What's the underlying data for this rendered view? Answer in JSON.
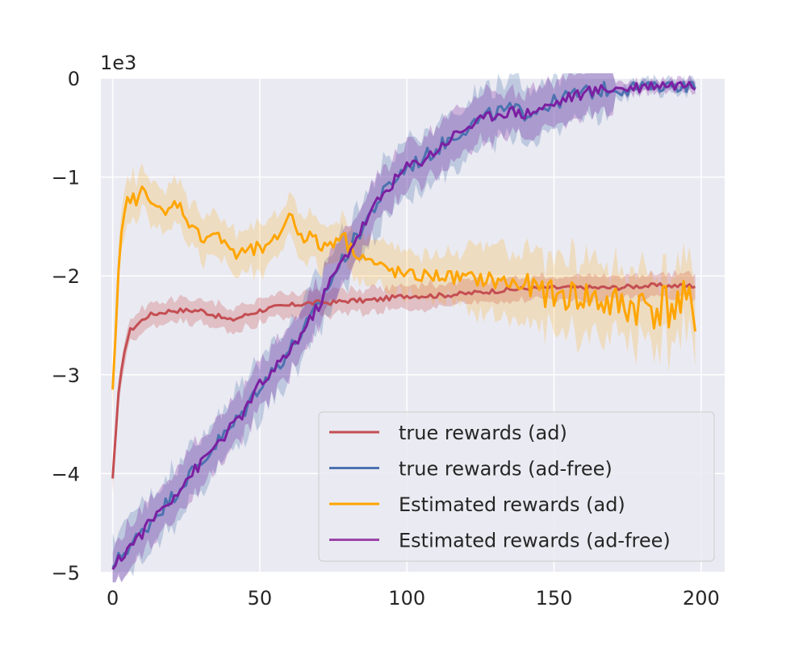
{
  "chart_data": {
    "type": "line",
    "title": "",
    "xlabel": "",
    "ylabel": "",
    "y_scale_label": "1e3",
    "xlim": [
      -4,
      208
    ],
    "ylim": [
      -5,
      0
    ],
    "xticks": [
      0,
      50,
      100,
      150,
      200
    ],
    "xtick_labels": [
      "0",
      "50",
      "100",
      "150",
      "200"
    ],
    "yticks": [
      0,
      -1,
      -2,
      -3,
      -4,
      -5
    ],
    "ytick_labels": [
      "0",
      "−1",
      "−2",
      "−3",
      "−4",
      "−5"
    ],
    "grid": true,
    "background": "#eaeaf2",
    "legend": {
      "position": "lower-right"
    },
    "series": [
      {
        "name": "true rewards (ad)",
        "color": "#c44e52",
        "band_spread": 0.12,
        "x": [
          0,
          2,
          4,
          6,
          8,
          10,
          12,
          15,
          20,
          25,
          30,
          35,
          40,
          45,
          50,
          55,
          60,
          65,
          70,
          75,
          80,
          85,
          90,
          95,
          100,
          110,
          120,
          130,
          140,
          150,
          160,
          170,
          180,
          190,
          198
        ],
        "y": [
          -4.05,
          -3.2,
          -2.75,
          -2.55,
          -2.5,
          -2.45,
          -2.4,
          -2.38,
          -2.35,
          -2.35,
          -2.35,
          -2.4,
          -2.45,
          -2.4,
          -2.35,
          -2.32,
          -2.3,
          -2.28,
          -2.27,
          -2.27,
          -2.25,
          -2.25,
          -2.24,
          -2.22,
          -2.2,
          -2.2,
          -2.18,
          -2.15,
          -2.13,
          -2.12,
          -2.12,
          -2.12,
          -2.1,
          -2.1,
          -2.1
        ]
      },
      {
        "name": "true rewards (ad-free)",
        "color": "#4c72b0",
        "band_spread": 0.28,
        "x": [
          0,
          5,
          10,
          15,
          20,
          25,
          30,
          35,
          40,
          45,
          50,
          55,
          60,
          65,
          70,
          75,
          80,
          85,
          90,
          95,
          100,
          105,
          110,
          115,
          120,
          125,
          130,
          135,
          140,
          145,
          150,
          155,
          160,
          165,
          170,
          175,
          180,
          185,
          190,
          195,
          198
        ],
        "y": [
          -4.95,
          -4.75,
          -4.6,
          -4.4,
          -4.25,
          -4.05,
          -3.9,
          -3.7,
          -3.55,
          -3.35,
          -3.1,
          -2.95,
          -2.75,
          -2.55,
          -2.3,
          -2.0,
          -1.75,
          -1.5,
          -1.25,
          -1.05,
          -0.9,
          -0.82,
          -0.72,
          -0.6,
          -0.5,
          -0.42,
          -0.35,
          -0.32,
          -0.35,
          -0.3,
          -0.25,
          -0.18,
          -0.15,
          -0.12,
          -0.1,
          -0.1,
          -0.08,
          -0.06,
          -0.06,
          -0.06,
          -0.06
        ]
      },
      {
        "name": "Estimated rewards (ad)",
        "color": "#ffa500",
        "band_spread": 0.22,
        "x": [
          0,
          1,
          2,
          3,
          4,
          5,
          6,
          8,
          10,
          12,
          14,
          16,
          18,
          20,
          22,
          25,
          28,
          30,
          32,
          35,
          38,
          40,
          42,
          45,
          48,
          50,
          52,
          55,
          58,
          60,
          62,
          65,
          68,
          70,
          72,
          75,
          78,
          80,
          85,
          90,
          95,
          100,
          110,
          120,
          130,
          140,
          150,
          160,
          170,
          180,
          190,
          198
        ],
        "y": [
          -3.15,
          -2.6,
          -2.0,
          -1.6,
          -1.4,
          -1.25,
          -1.2,
          -1.25,
          -1.15,
          -1.15,
          -1.25,
          -1.35,
          -1.4,
          -1.3,
          -1.25,
          -1.4,
          -1.55,
          -1.6,
          -1.6,
          -1.55,
          -1.7,
          -1.7,
          -1.8,
          -1.75,
          -1.75,
          -1.7,
          -1.75,
          -1.65,
          -1.5,
          -1.35,
          -1.5,
          -1.6,
          -1.6,
          -1.7,
          -1.7,
          -1.65,
          -1.55,
          -1.7,
          -1.8,
          -1.9,
          -1.95,
          -2.0,
          -2.0,
          -2.02,
          -2.05,
          -2.1,
          -2.2,
          -2.2,
          -2.3,
          -2.3,
          -2.3,
          -2.35
        ]
      },
      {
        "name": "Estimated rewards (ad-free)",
        "color": "#7b1fa2",
        "band_spread": 0.24,
        "x": [
          0,
          5,
          10,
          15,
          20,
          25,
          30,
          35,
          40,
          45,
          50,
          55,
          60,
          65,
          70,
          75,
          80,
          85,
          90,
          95,
          100,
          105,
          110,
          115,
          120,
          125,
          130,
          135,
          140,
          145,
          150,
          155,
          160,
          165,
          170,
          175,
          180,
          185,
          190,
          195,
          198
        ],
        "y": [
          -4.97,
          -4.76,
          -4.6,
          -4.41,
          -4.25,
          -4.06,
          -3.9,
          -3.71,
          -3.55,
          -3.36,
          -3.1,
          -2.96,
          -2.76,
          -2.55,
          -2.3,
          -2.0,
          -1.76,
          -1.5,
          -1.25,
          -1.06,
          -0.9,
          -0.83,
          -0.73,
          -0.6,
          -0.5,
          -0.43,
          -0.36,
          -0.33,
          -0.36,
          -0.31,
          -0.26,
          -0.19,
          -0.16,
          -0.12,
          -0.1,
          -0.1,
          -0.08,
          -0.06,
          -0.06,
          -0.06,
          -0.06
        ]
      }
    ]
  }
}
